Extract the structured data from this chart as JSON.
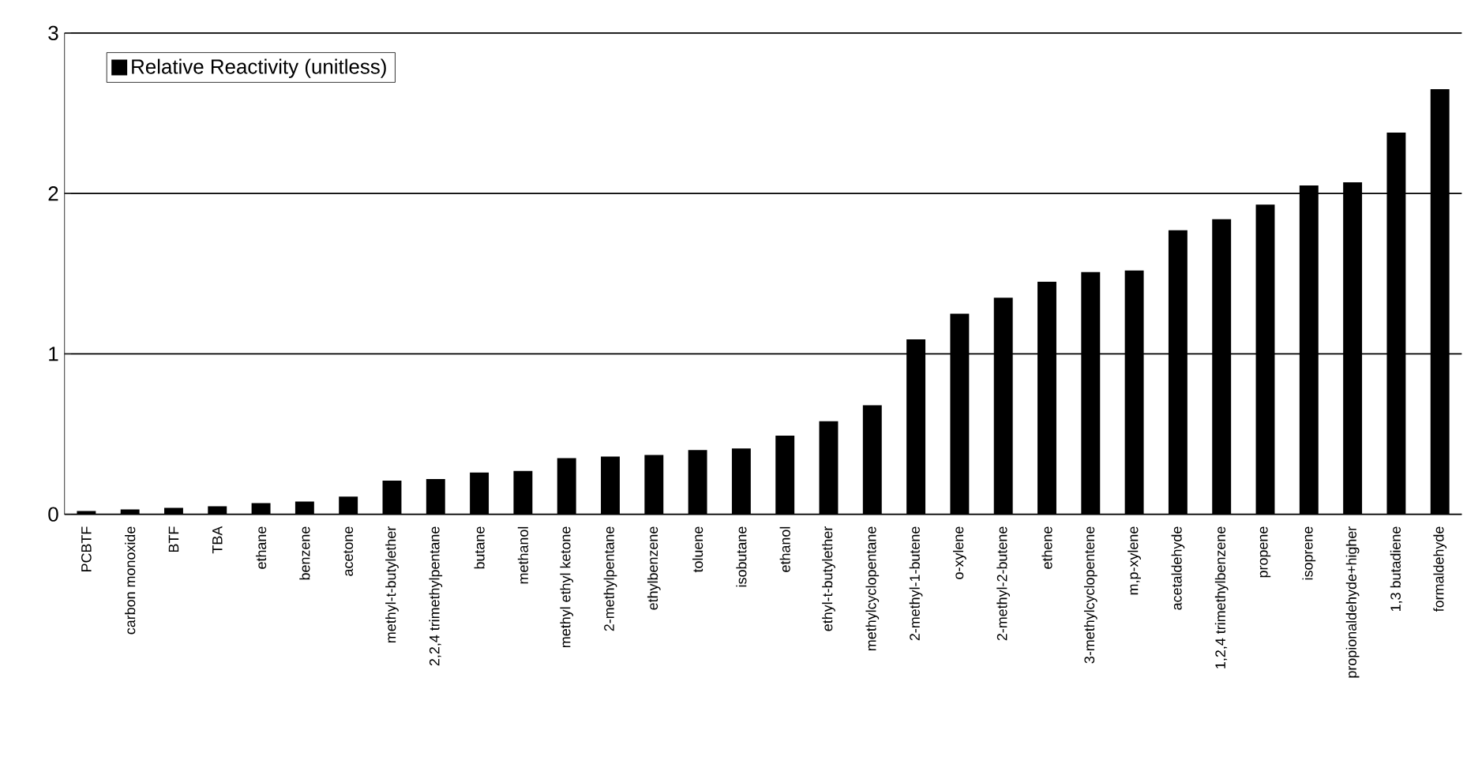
{
  "chart_data": {
    "type": "bar",
    "categories": [
      "PCBTF",
      "carbon monoxide",
      "BTF",
      "TBA",
      "ethane",
      "benzene",
      "acetone",
      "methyl-t-butylether",
      "2,2,4 trimethylpentane",
      "butane",
      "methanol",
      "methyl ethyl ketone",
      "2-methylpentane",
      "ethylbenzene",
      "toluene",
      "isobutane",
      "ethanol",
      "ethyl-t-butylether",
      "methylcyclopentane",
      "2-methyl-1-butene",
      "o-xylene",
      "2-methyl-2-butene",
      "ethene",
      "3-methylcyclopentene",
      "m,p-xylene",
      "acetaldehyde",
      "1,2,4 trimethylbenzene",
      "propene",
      "isoprene",
      "propionaldehyde+higher",
      "1,3 butadiene",
      "formaldehyde"
    ],
    "series": [
      {
        "name": "Relative Reactivity (unitless)",
        "color": "#000000",
        "values": [
          0.02,
          0.03,
          0.04,
          0.05,
          0.07,
          0.08,
          0.11,
          0.21,
          0.22,
          0.26,
          0.27,
          0.35,
          0.36,
          0.37,
          0.4,
          0.41,
          0.49,
          0.58,
          0.68,
          1.09,
          1.25,
          1.35,
          1.45,
          1.51,
          1.52,
          1.77,
          1.84,
          1.93,
          2.05,
          2.07,
          2.38,
          2.65
        ]
      }
    ],
    "ylim": [
      0,
      3
    ],
    "yticks": [
      0,
      1,
      2,
      3
    ],
    "grid": "y",
    "legend": "top left"
  }
}
